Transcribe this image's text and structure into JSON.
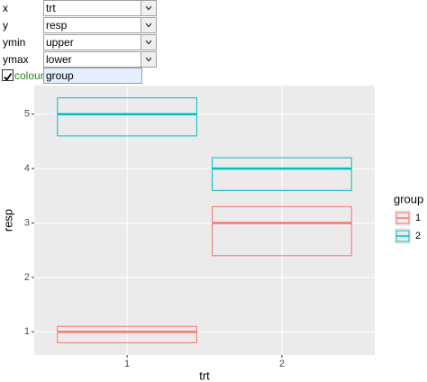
{
  "controls": [
    {
      "label": "x",
      "value": "trt"
    },
    {
      "label": "y",
      "value": "resp"
    },
    {
      "label": "ymin",
      "value": "upper"
    },
    {
      "label": "ymax",
      "value": "lower"
    },
    {
      "label": "colour",
      "value": "group"
    }
  ],
  "chart_data": {
    "type": "crossbar",
    "x_label": "trt",
    "y_label": "resp",
    "categories": [
      "1",
      "2"
    ],
    "series": [
      {
        "name": "1",
        "color": "#F8766D",
        "values": [
          1,
          3
        ],
        "lower": [
          0.8,
          2.4
        ],
        "upper": [
          1.1,
          3.3
        ]
      },
      {
        "name": "2",
        "color": "#00BFC4",
        "values": [
          5,
          4
        ],
        "lower": [
          4.6,
          3.6
        ],
        "upper": [
          5.3,
          4.2
        ]
      }
    ],
    "ylim": [
      0.575,
      5.525
    ],
    "yticks": [
      1,
      2,
      3,
      4,
      5
    ],
    "grid": true,
    "legend_title": "group",
    "legend_position": "right"
  }
}
